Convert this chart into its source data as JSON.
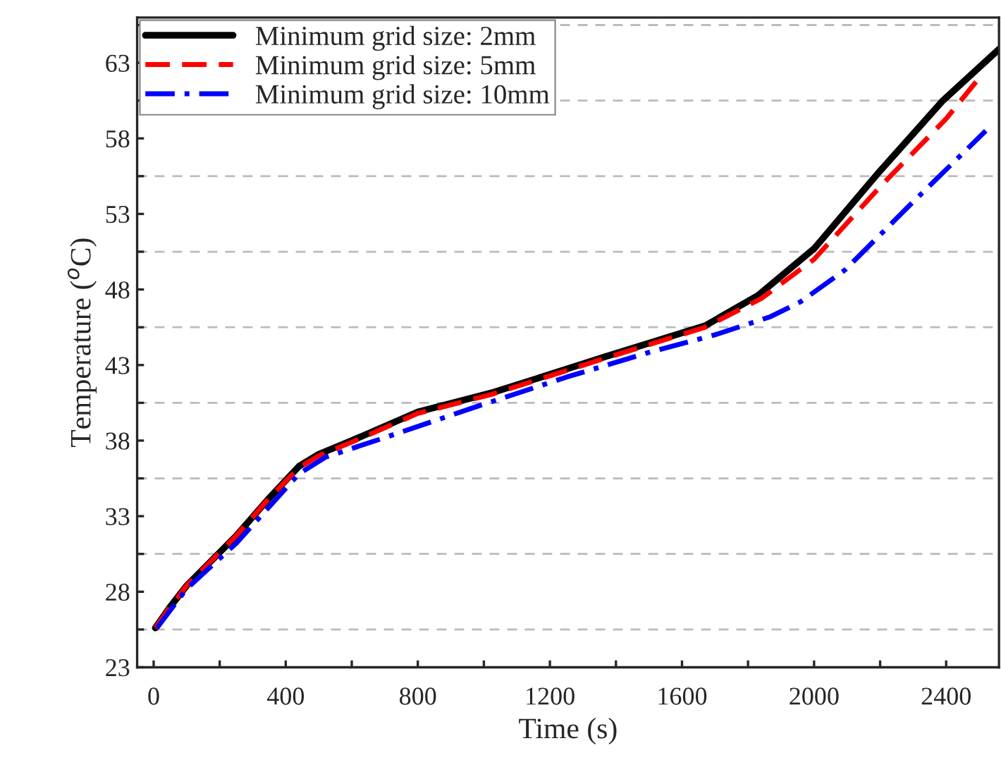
{
  "chart_data": {
    "type": "line",
    "xlabel": "Time (s)",
    "ylabel": "Temperature ($^{o}$C)",
    "xlim": [
      -50,
      2560
    ],
    "ylim": [
      23,
      66
    ],
    "xticks": [
      0,
      {
        "value": 200,
        "label": null
      },
      400,
      {
        "value": 600,
        "label": null
      },
      800,
      {
        "value": 1000,
        "label": null
      },
      1200,
      {
        "value": 1400,
        "label": null
      },
      1600,
      {
        "value": 1800,
        "label": null
      },
      2000,
      {
        "value": 2200,
        "label": null
      },
      2400
    ],
    "yticks": [
      23,
      {
        "value": 25.5,
        "label": null
      },
      28,
      {
        "value": 30.5,
        "label": null
      },
      33,
      {
        "value": 35.5,
        "label": null
      },
      38,
      {
        "value": 40.5,
        "label": null
      },
      43,
      {
        "value": 45.5,
        "label": null
      },
      48,
      {
        "value": 50.5,
        "label": null
      },
      53,
      {
        "value": 55.5,
        "label": null
      },
      58,
      {
        "value": 60.5,
        "label": null
      },
      63,
      {
        "value": 65.5,
        "label": null
      }
    ],
    "grid": "y",
    "legend": "top left",
    "marker": "none",
    "series": [
      {
        "name": "Minimum grid size: 2mm",
        "color": "#000000",
        "line_style": "solid",
        "x": [
          5,
          50,
          100,
          250,
          350,
          440,
          500,
          600,
          800,
          1030,
          1360,
          1670,
          1830,
          2000,
          2190,
          2390,
          2560
        ],
        "values": [
          25.6,
          27.0,
          28.4,
          31.7,
          34.2,
          36.3,
          37.1,
          38.0,
          39.9,
          41.2,
          43.5,
          45.6,
          47.6,
          50.7,
          55.6,
          60.5,
          63.9
        ]
      },
      {
        "name": "Minimum grid size: 5mm",
        "color": "#ff0000",
        "line_style": "dashed",
        "x": [
          5,
          50,
          100,
          250,
          350,
          440,
          500,
          600,
          800,
          1030,
          1360,
          1670,
          1840,
          2000,
          2200,
          2400,
          2500
        ],
        "values": [
          25.6,
          27.0,
          28.4,
          31.7,
          34.2,
          36.2,
          37.0,
          37.9,
          39.8,
          41.1,
          43.4,
          45.5,
          47.4,
          50.0,
          54.8,
          59.3,
          62.0
        ]
      },
      {
        "name": "Minimum grid size: 10mm",
        "color": "#0000ff",
        "line_style": "dashdot",
        "x": [
          10,
          100,
          250,
          440,
          520,
          700,
          985,
          1250,
          1510,
          1700,
          1868,
          1960,
          2094,
          2300,
          2520
        ],
        "values": [
          25.6,
          28.2,
          31.2,
          35.8,
          36.9,
          38.2,
          40.3,
          42.2,
          43.9,
          45.0,
          46.2,
          47.2,
          49.3,
          53.8,
          58.5
        ]
      }
    ]
  }
}
